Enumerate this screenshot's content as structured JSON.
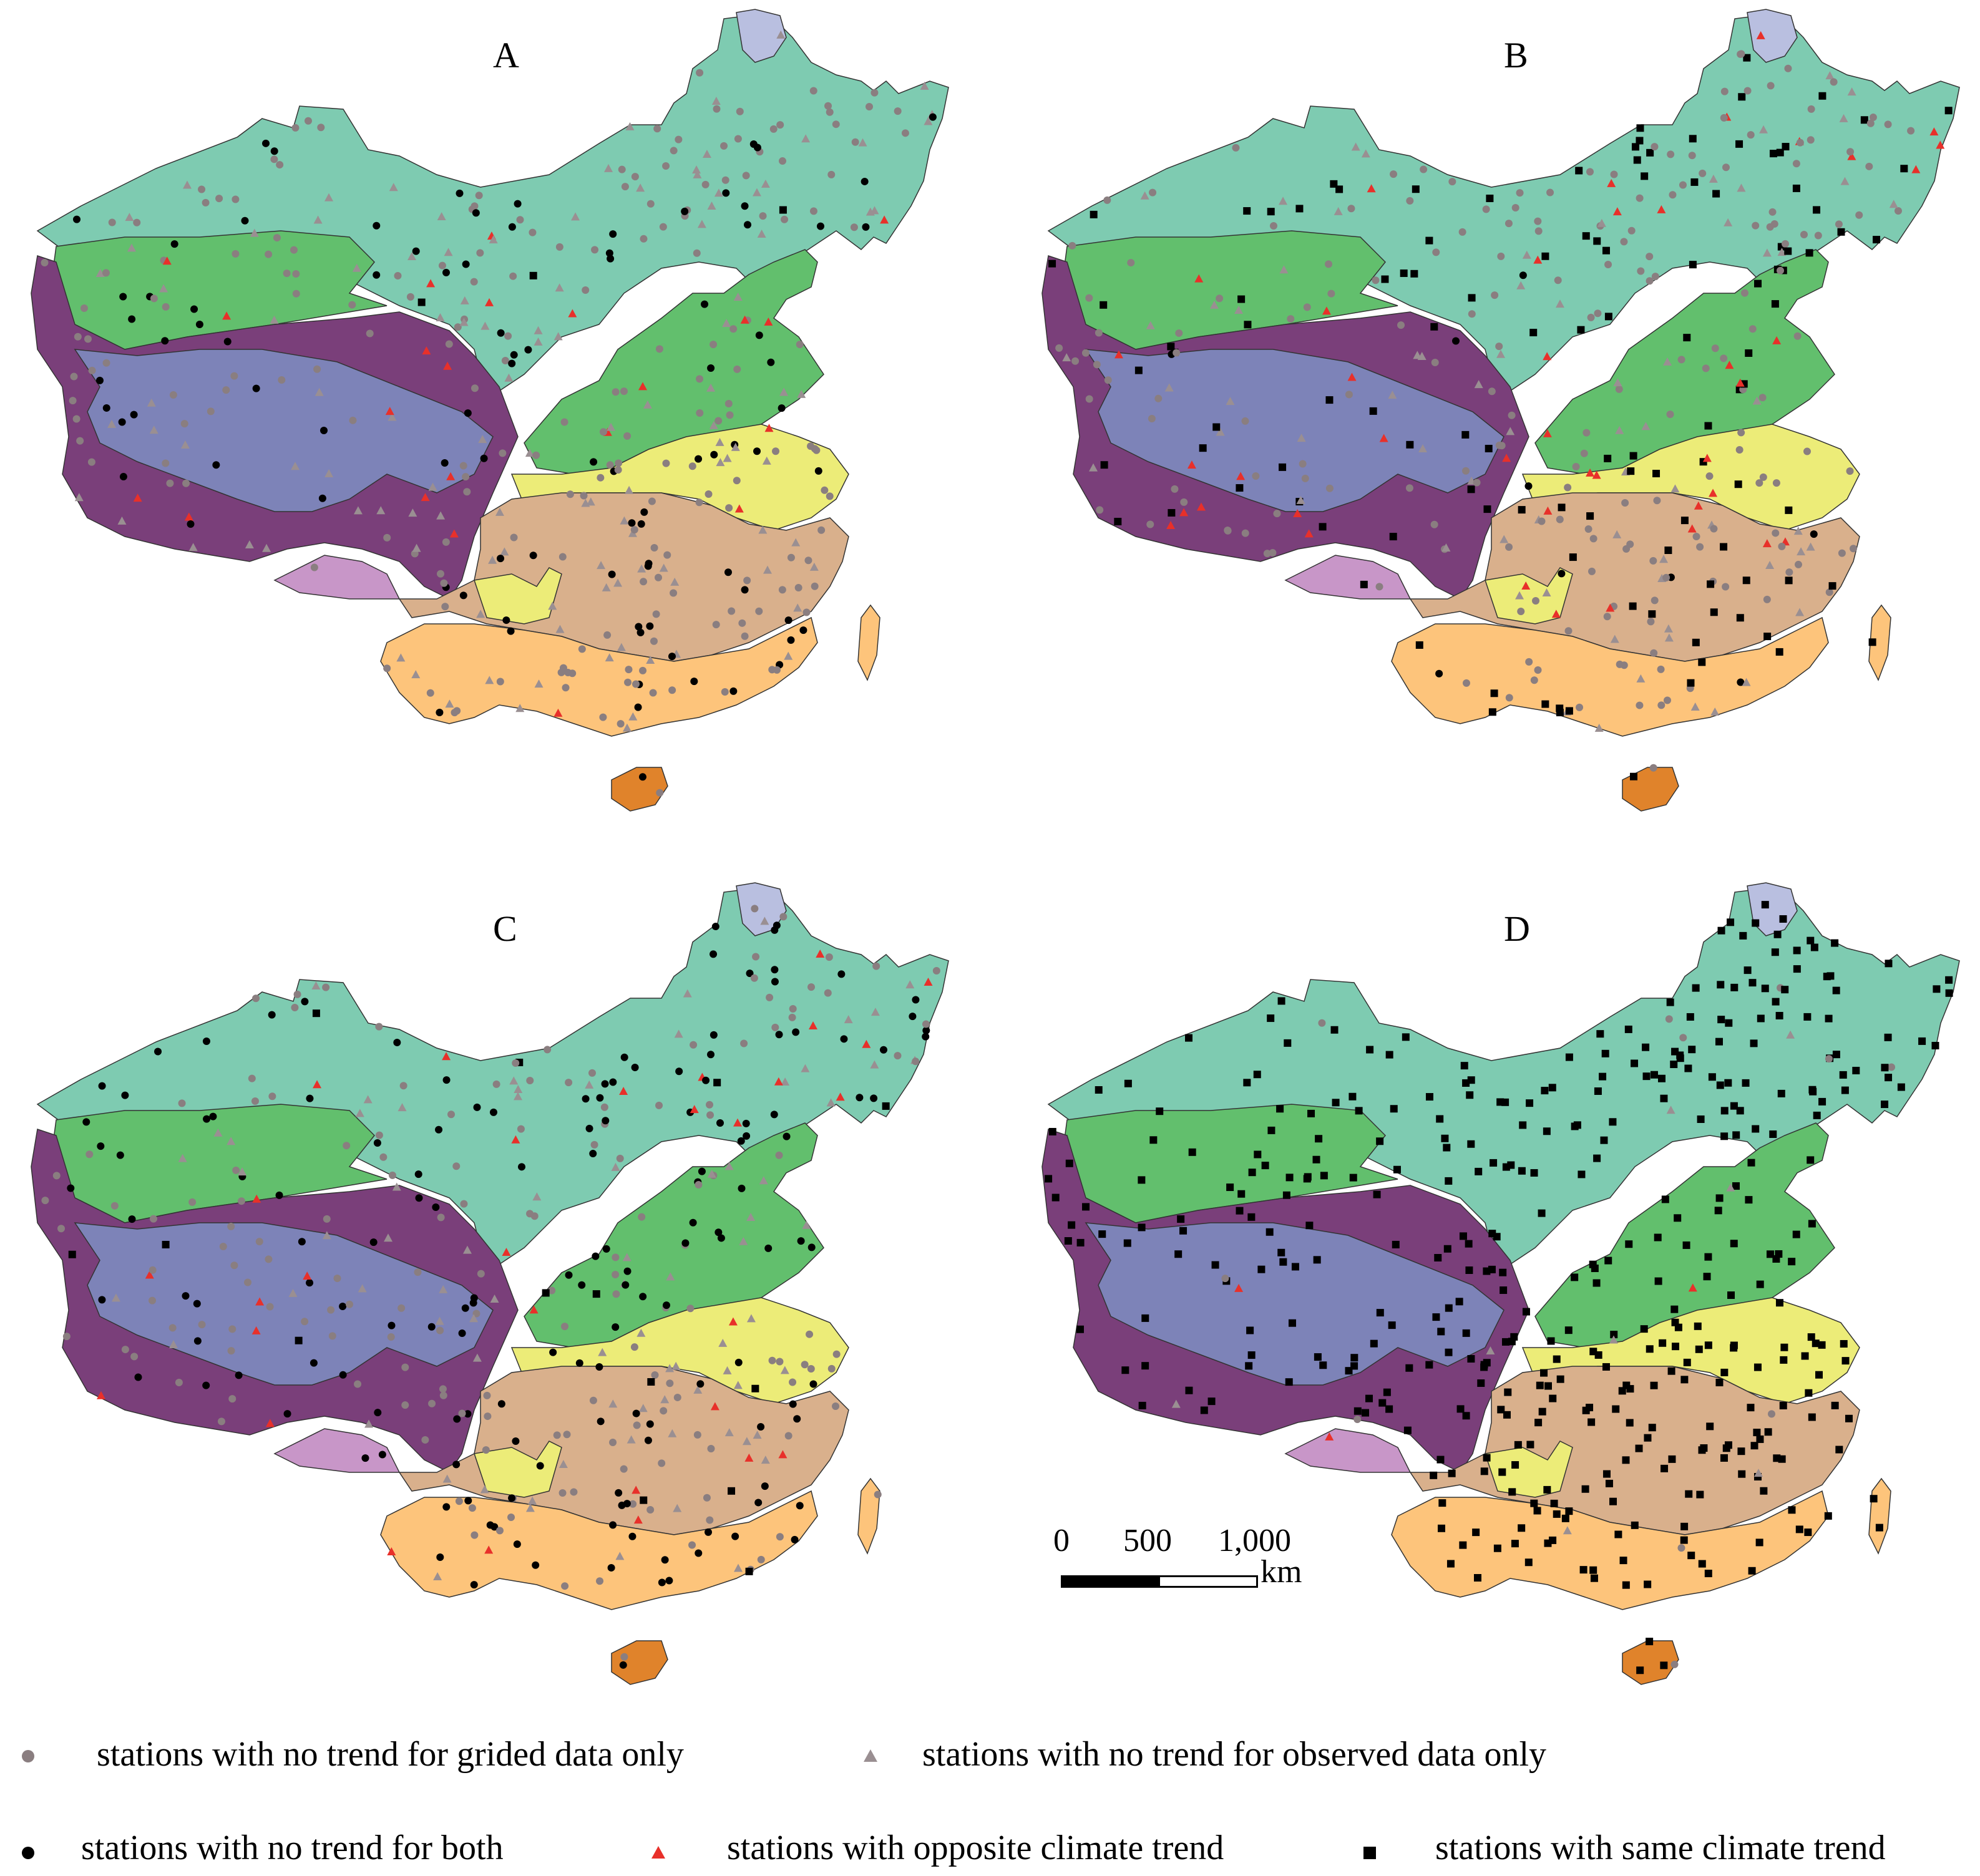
{
  "panels": [
    {
      "label": "A"
    },
    {
      "label": "B"
    },
    {
      "label": "C"
    },
    {
      "label": "D"
    }
  ],
  "region_colors": {
    "northeast_north": "#7ecbb1",
    "northwest_basin": "#62bf6d",
    "north_china_plain": "#62bf6d",
    "tibet_rim": "#7a3f7a",
    "tibet_plateau": "#7d83b8",
    "southwest_pink": "#c896c8",
    "yangtze_yellow": "#ecec78",
    "central_tan": "#d9b08c",
    "south_orange": "#fdc47b",
    "hainan": "#e0832b",
    "far_north_lavender": "#b9bfe0",
    "taiwan": "#fdc47b"
  },
  "marker_colors": {
    "gridded_only": "#8a7e80",
    "observed_only": "#9a8f92",
    "both": "#000000",
    "opposite": "#e8302a",
    "same": "#000000"
  },
  "scale_bar": {
    "ticks": [
      "0",
      "500",
      "1,000"
    ],
    "unit": "km"
  },
  "legend": {
    "gridded_only": "stations with no trend for grided data only",
    "observed_only": "stations with no trend for observed data only",
    "both": "stations with no trend for both",
    "opposite": "stations with opposite climate trend",
    "same": "stations with same climate trend"
  }
}
